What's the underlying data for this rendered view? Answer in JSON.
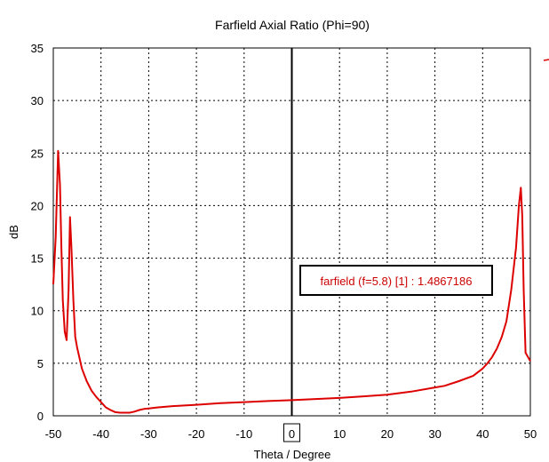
{
  "chart_data": {
    "type": "line",
    "title": "Farfield  Axial Ratio (Phi=90)",
    "xlabel": "Theta / Degree",
    "ylabel": "dB",
    "xlim": [
      -50,
      50
    ],
    "ylim": [
      0,
      35
    ],
    "x_ticks": [
      -50,
      -40,
      -30,
      -20,
      -10,
      0,
      10,
      20,
      30,
      40,
      50
    ],
    "y_ticks": [
      0,
      5,
      10,
      15,
      20,
      25,
      30,
      35
    ],
    "grid": true,
    "marker_x": 0,
    "marker_label": "0",
    "annotation": "farfield (f=5.8) [1] : 1.4867186",
    "series": [
      {
        "color": "#dd0000",
        "x": [
          -50,
          -49.5,
          -49,
          -48.6,
          -48.3,
          -48,
          -47.6,
          -47.2,
          -46.8,
          -46.5,
          -46.2,
          -45.8,
          -45.4,
          -45,
          -44,
          -43,
          -42,
          -41,
          -40,
          -39,
          -38,
          -37,
          -36,
          -35,
          -34,
          -33,
          -32,
          -31,
          -30,
          -28,
          -25,
          -20,
          -15,
          -10,
          -5,
          0,
          5,
          10,
          15,
          20,
          25,
          30,
          32,
          35,
          38,
          40,
          41,
          42,
          43,
          44,
          45,
          46,
          47,
          47.6,
          48,
          48.3,
          48.6,
          49,
          50
        ],
        "values": [
          12.5,
          17.0,
          25.2,
          22.0,
          16.0,
          11.0,
          8.0,
          7.2,
          12.0,
          18.9,
          16.0,
          11.0,
          7.5,
          6.5,
          4.5,
          3.3,
          2.4,
          1.8,
          1.3,
          0.8,
          0.55,
          0.35,
          0.3,
          0.3,
          0.3,
          0.4,
          0.55,
          0.65,
          0.7,
          0.8,
          0.92,
          1.05,
          1.2,
          1.3,
          1.4,
          1.49,
          1.6,
          1.7,
          1.85,
          2.0,
          2.3,
          2.7,
          2.85,
          3.3,
          3.8,
          4.5,
          5.0,
          5.6,
          6.4,
          7.5,
          9.0,
          12.0,
          16.0,
          20.0,
          21.7,
          19.0,
          12.0,
          6.0,
          5.2
        ]
      }
    ]
  }
}
